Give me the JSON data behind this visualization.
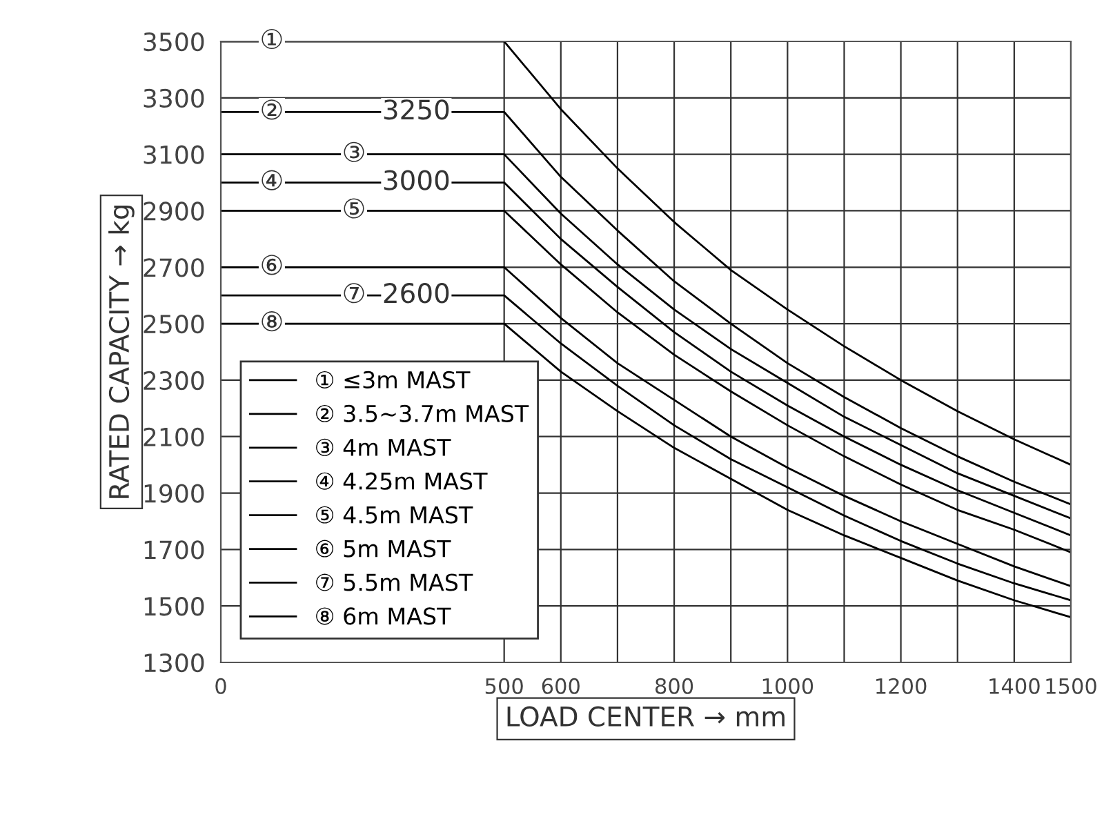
{
  "chart_data": {
    "type": "line",
    "xlabel": "LOAD CENTER → mm",
    "ylabel": "RATED CAPACITY → kg",
    "x": [
      0,
      500,
      600,
      700,
      800,
      900,
      1000,
      1100,
      1200,
      1300,
      1400,
      1500
    ],
    "series": [
      {
        "name": "① ≤3m MAST",
        "color": "#000000",
        "values": [
          3500,
          3500,
          3260,
          3050,
          2860,
          2690,
          2550,
          2420,
          2300,
          2190,
          2090,
          2000
        ]
      },
      {
        "name": "② 3.5~3.7m MAST",
        "color": "#000000",
        "values": [
          3250,
          3250,
          3020,
          2830,
          2650,
          2500,
          2360,
          2240,
          2130,
          2030,
          1940,
          1860
        ]
      },
      {
        "name": "③ 4m MAST",
        "color": "#000000",
        "values": [
          3100,
          3100,
          2890,
          2710,
          2550,
          2410,
          2290,
          2170,
          2070,
          1970,
          1890,
          1810
        ]
      },
      {
        "name": "④ 4.25m MAST",
        "color": "#000000",
        "values": [
          3000,
          3000,
          2800,
          2630,
          2470,
          2330,
          2210,
          2100,
          2000,
          1910,
          1830,
          1750
        ]
      },
      {
        "name": "⑤ 4.5m MAST",
        "color": "#000000",
        "values": [
          2900,
          2900,
          2710,
          2540,
          2390,
          2260,
          2140,
          2030,
          1930,
          1840,
          1770,
          1690
        ]
      },
      {
        "name": "⑥ 5m MAST",
        "color": "#000000",
        "values": [
          2700,
          2700,
          2520,
          2360,
          2230,
          2100,
          1990,
          1890,
          1800,
          1720,
          1640,
          1570
        ]
      },
      {
        "name": "⑦ 5.5m MAST",
        "color": "#000000",
        "values": [
          2600,
          2600,
          2430,
          2280,
          2140,
          2020,
          1920,
          1820,
          1730,
          1650,
          1580,
          1520
        ]
      },
      {
        "name": "⑧ 6m MAST",
        "color": "#000000",
        "values": [
          2500,
          2500,
          2330,
          2190,
          2060,
          1950,
          1840,
          1750,
          1670,
          1590,
          1520,
          1460
        ]
      }
    ],
    "xlim": [
      0,
      1500
    ],
    "xticks": [
      0,
      500,
      600,
      {
        "value": 700,
        "label": null
      },
      800,
      {
        "value": 900,
        "label": null
      },
      1000,
      {
        "value": 1100,
        "label": null
      },
      1200,
      {
        "value": 1300,
        "label": null
      },
      1400,
      1500
    ],
    "ylim": [
      1300,
      3500
    ],
    "yticks": [
      1300,
      1500,
      1700,
      1900,
      2100,
      2300,
      2500,
      2700,
      2900,
      3100,
      3300,
      3500
    ],
    "grid": true,
    "legend": "lower left",
    "marker": "none",
    "line_style": "solid",
    "annotations": [
      {
        "text": "①",
        "x": 90,
        "y": 3500
      },
      {
        "text": "②",
        "x": 90,
        "y": 3250
      },
      {
        "text": "3250",
        "x": 345,
        "y": 3250
      },
      {
        "text": "③",
        "x": 235,
        "y": 3100
      },
      {
        "text": "④",
        "x": 90,
        "y": 3000
      },
      {
        "text": "3000",
        "x": 345,
        "y": 3000
      },
      {
        "text": "⑤",
        "x": 235,
        "y": 2900
      },
      {
        "text": "⑥",
        "x": 90,
        "y": 2700
      },
      {
        "text": "⑦",
        "x": 235,
        "y": 2600
      },
      {
        "text": "2600",
        "x": 345,
        "y": 2600
      },
      {
        "text": "⑧",
        "x": 90,
        "y": 2500
      }
    ]
  }
}
